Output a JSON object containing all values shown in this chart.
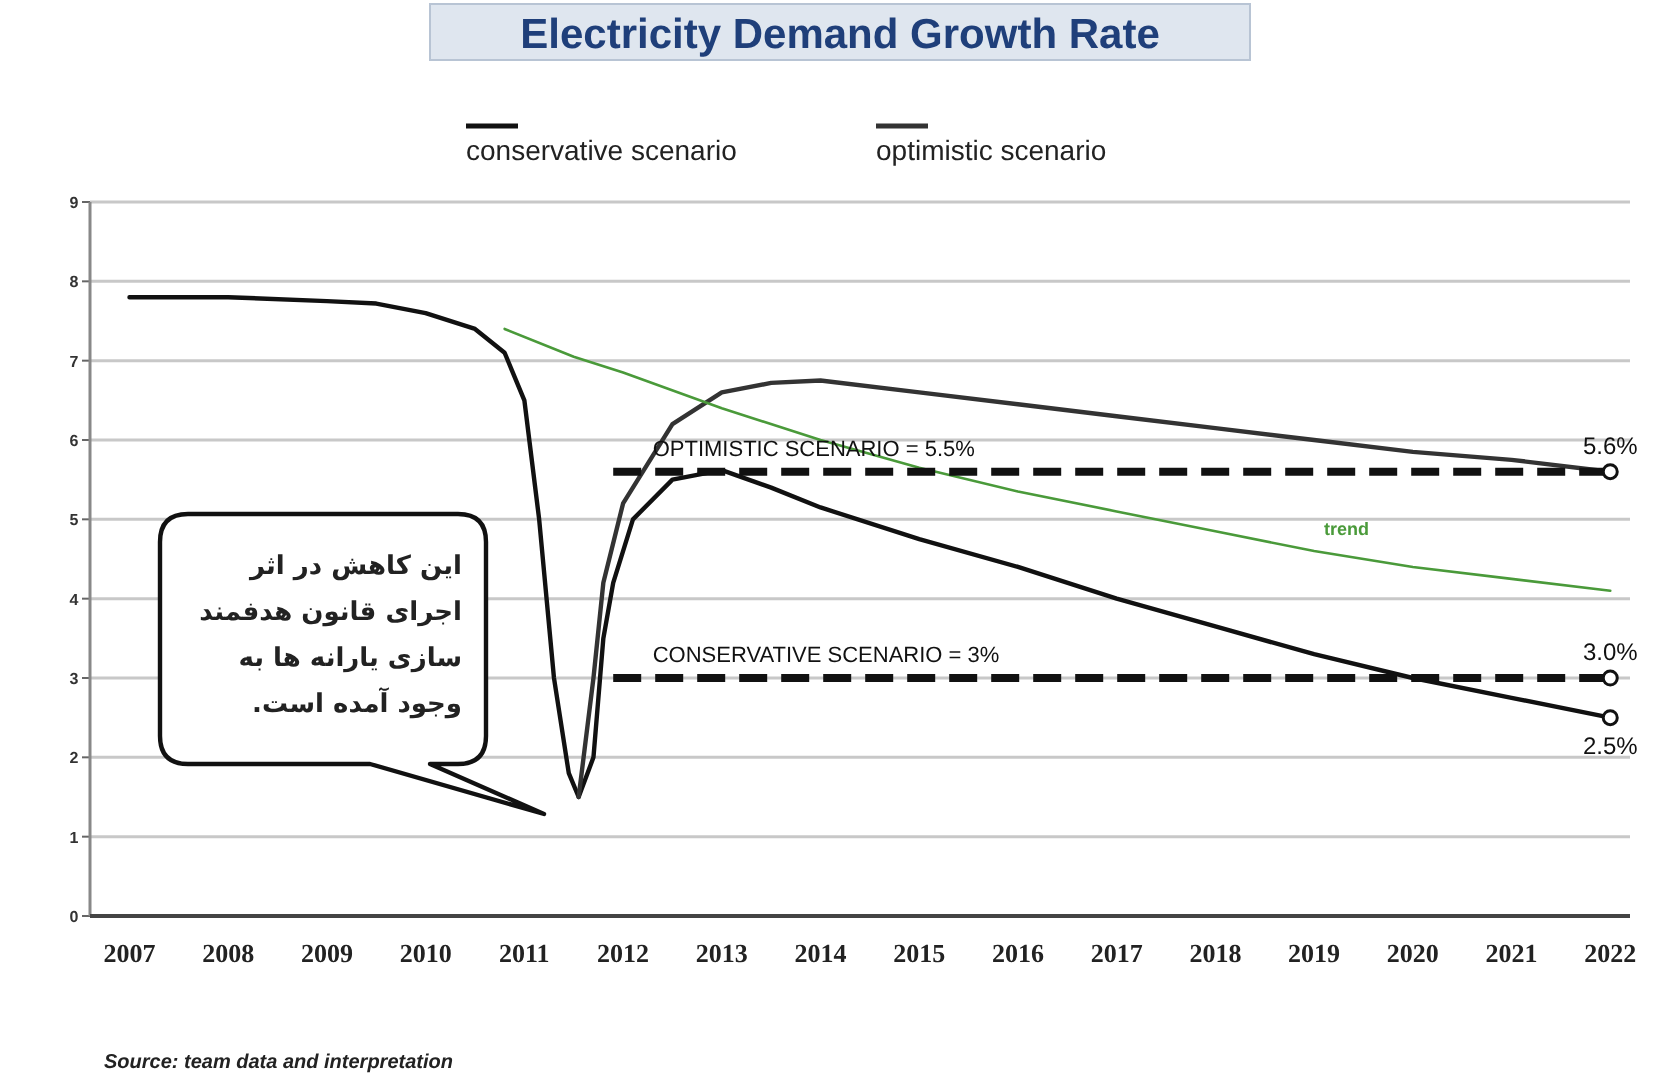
{
  "chart_data": {
    "type": "line",
    "title": "Electricity Demand Growth Rate",
    "xlim": [
      2006.6,
      2022.2
    ],
    "xticks": [
      2007,
      2008,
      2009,
      2010,
      2011,
      2012,
      2013,
      2014,
      2015,
      2016,
      2017,
      2018,
      2019,
      2020,
      2021,
      2022
    ],
    "ylim": [
      0,
      9
    ],
    "yticks": [
      0,
      1,
      2,
      3,
      4,
      5,
      6,
      7,
      8,
      9
    ],
    "grid": "y",
    "legend": "top",
    "series": [
      {
        "name": "conservative scenario",
        "color": "#111111",
        "x": [
          2007,
          2008,
          2009,
          2009.5,
          2010,
          2010.5,
          2010.8,
          2011.0,
          2011.15,
          2011.3,
          2011.45,
          2011.55,
          2011.7,
          2011.8,
          2011.9,
          2012.1,
          2012.5,
          2013,
          2013.5,
          2014,
          2015,
          2016,
          2017,
          2018,
          2019,
          2020,
          2021,
          2022
        ],
        "values": [
          7.8,
          7.8,
          7.75,
          7.72,
          7.6,
          7.4,
          7.1,
          6.5,
          5.0,
          3.0,
          1.8,
          1.5,
          2.0,
          3.5,
          4.2,
          5.0,
          5.5,
          5.62,
          5.4,
          5.15,
          4.75,
          4.4,
          4.0,
          3.65,
          3.3,
          3.0,
          2.75,
          2.5
        ]
      },
      {
        "name": "optimistic scenario",
        "color": "#333333",
        "x": [
          2011.55,
          2011.7,
          2011.8,
          2012,
          2012.5,
          2013,
          2013.5,
          2014,
          2015,
          2016,
          2017,
          2018,
          2019,
          2020,
          2021,
          2022
        ],
        "values": [
          1.5,
          3.0,
          4.2,
          5.2,
          6.2,
          6.6,
          6.72,
          6.75,
          6.6,
          6.45,
          6.3,
          6.15,
          6.0,
          5.85,
          5.75,
          5.6
        ]
      },
      {
        "color": "#4a9a3a",
        "x": [
          2010.8,
          2011.5,
          2012,
          2013,
          2014,
          2015,
          2016,
          2017,
          2018,
          2019,
          2020,
          2021,
          2022
        ],
        "values": [
          7.4,
          7.05,
          6.85,
          6.4,
          6.0,
          5.65,
          5.35,
          5.1,
          4.85,
          4.6,
          4.4,
          4.25,
          4.1
        ]
      },
      {
        "color": "#111111",
        "line_style": "dashed",
        "x": [
          2011.9,
          2022
        ],
        "values": [
          5.6,
          5.6
        ]
      },
      {
        "color": "#111111",
        "line_style": "dashed",
        "x": [
          2011.9,
          2022
        ],
        "values": [
          3.0,
          3.0
        ]
      }
    ],
    "annotations": [
      {
        "text": "trend",
        "x": 2019.1,
        "y": 4.6
      },
      {
        "text": "OPTIMISTIC SCENARIO = 5.5%",
        "x": 2012.3,
        "y": 5.6
      },
      {
        "text": "CONSERVATIVE SCENARIO = 3%",
        "x": 2012.3,
        "y": 3.0
      },
      {
        "text": "5.6%",
        "x": 2022,
        "y": 5.6
      },
      {
        "text": "3.0%",
        "x": 2022,
        "y": 3.0
      },
      {
        "text": "2.5%",
        "x": 2022,
        "y": 2.5
      },
      "این کاهش در اثر\nاجرای قانون هدفمند\nسازی یارانه ها به\nوجود آمده است.",
      "Source: team data and interpretation"
    ]
  }
}
